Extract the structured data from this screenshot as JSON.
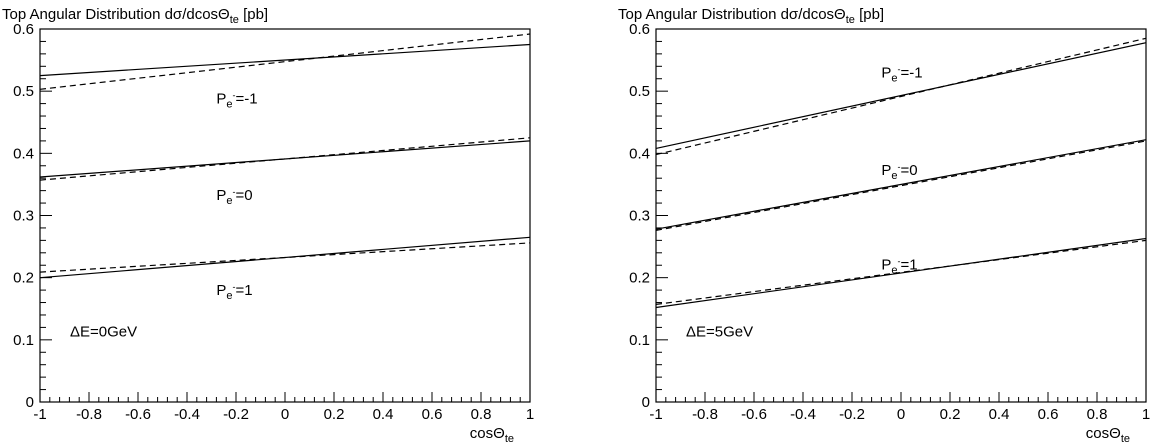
{
  "chart_data": [
    {
      "type": "line",
      "title": "Top Angular Distribution dσ/dcosΘ",
      "title_sub": "te",
      "title_unit": "[pb]",
      "xlabel": "cosΘ",
      "xlabel_sub": "te",
      "xlim": [
        -1,
        1
      ],
      "ylim": [
        0,
        0.6
      ],
      "xticks": [
        -1,
        -0.8,
        -0.6,
        -0.4,
        -0.2,
        0,
        0.2,
        0.4,
        0.6,
        0.8,
        1
      ],
      "xtick_labels": [
        "-1",
        "-0.8",
        "-0.6",
        "-0.4",
        "-0.2",
        "0",
        "0.2",
        "0.4",
        "0.6",
        "0.8",
        "1"
      ],
      "yticks": [
        0,
        0.1,
        0.2,
        0.3,
        0.4,
        0.5,
        0.6
      ],
      "ytick_labels": [
        "0",
        "0.1",
        "0.2",
        "0.3",
        "0.4",
        "0.5",
        "0.6"
      ],
      "grid": false,
      "annotation": "ΔE=0GeV",
      "series": [
        {
          "style": "solid",
          "x": [
            -1,
            1
          ],
          "y": [
            0.525,
            0.575
          ]
        },
        {
          "style": "dashed",
          "x": [
            -1,
            1
          ],
          "y": [
            0.503,
            0.592
          ]
        },
        {
          "style": "solid",
          "x": [
            -1,
            1
          ],
          "y": [
            0.362,
            0.42
          ]
        },
        {
          "style": "dashed",
          "x": [
            -1,
            1
          ],
          "y": [
            0.357,
            0.425
          ]
        },
        {
          "style": "solid",
          "x": [
            -1,
            1
          ],
          "y": [
            0.2,
            0.265
          ]
        },
        {
          "style": "dashed",
          "x": [
            -1,
            1
          ],
          "y": [
            0.209,
            0.256
          ]
        }
      ],
      "series_labels": [
        {
          "text_main": "P",
          "text_sub": "e",
          "text_sup": "-",
          "text_value": "=-1",
          "x": -0.28,
          "y": 0.48
        },
        {
          "text_main": "P",
          "text_sub": "e",
          "text_sup": "-",
          "text_value": "=0",
          "x": -0.28,
          "y": 0.325
        },
        {
          "text_main": "P",
          "text_sub": "e",
          "text_sup": "-",
          "text_value": "=1",
          "x": -0.28,
          "y": 0.172
        }
      ]
    },
    {
      "type": "line",
      "title": "Top Angular Distribution dσ/dcosΘ",
      "title_sub": "te",
      "title_unit": "[pb]",
      "xlabel": "cosΘ",
      "xlabel_sub": "te",
      "xlim": [
        -1,
        1
      ],
      "ylim": [
        0,
        0.6
      ],
      "xticks": [
        -1,
        -0.8,
        -0.6,
        -0.4,
        -0.2,
        0,
        0.2,
        0.4,
        0.6,
        0.8,
        1
      ],
      "xtick_labels": [
        "-1",
        "-0.8",
        "-0.6",
        "-0.4",
        "-0.2",
        "0",
        "0.2",
        "0.4",
        "0.6",
        "0.8",
        "1"
      ],
      "yticks": [
        0,
        0.1,
        0.2,
        0.3,
        0.4,
        0.5,
        0.6
      ],
      "ytick_labels": [
        "0",
        "0.1",
        "0.2",
        "0.3",
        "0.4",
        "0.5",
        "0.6"
      ],
      "grid": false,
      "annotation": "ΔE=5GeV",
      "series": [
        {
          "style": "solid",
          "x": [
            -1,
            1
          ],
          "y": [
            0.408,
            0.578
          ]
        },
        {
          "style": "dashed",
          "x": [
            -1,
            1
          ],
          "y": [
            0.398,
            0.585
          ]
        },
        {
          "style": "solid",
          "x": [
            -1,
            1
          ],
          "y": [
            0.278,
            0.422
          ]
        },
        {
          "style": "dashed",
          "x": [
            -1,
            1
          ],
          "y": [
            0.276,
            0.42
          ]
        },
        {
          "style": "solid",
          "x": [
            -1,
            1
          ],
          "y": [
            0.152,
            0.263
          ]
        },
        {
          "style": "dashed",
          "x": [
            -1,
            1
          ],
          "y": [
            0.157,
            0.26
          ]
        }
      ],
      "series_labels": [
        {
          "text_main": "P",
          "text_sub": "e",
          "text_sup": "-",
          "text_value": "=-1",
          "x": -0.08,
          "y": 0.522
        },
        {
          "text_main": "P",
          "text_sub": "e",
          "text_sup": "-",
          "text_value": "=0",
          "x": -0.08,
          "y": 0.365
        },
        {
          "text_main": "P",
          "text_sub": "e",
          "text_sup": "-",
          "text_value": "=1",
          "x": -0.08,
          "y": 0.213
        }
      ]
    }
  ]
}
